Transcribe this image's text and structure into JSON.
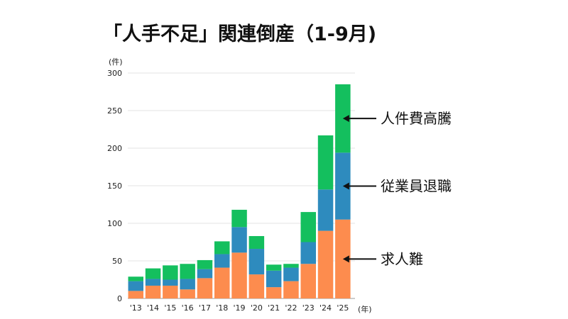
{
  "chart_data": {
    "type": "bar",
    "stacked": true,
    "title": "「人手不足」関連倒産（1-9月)",
    "y_unit": "(件)",
    "x_unit": "(年)",
    "categories": [
      "'13",
      "'14",
      "'15",
      "'16",
      "'17",
      "'18",
      "'19",
      "'20",
      "'21",
      "'22",
      "'23",
      "'24",
      "'25"
    ],
    "ylim": [
      0,
      300
    ],
    "y_ticks": [
      0,
      50,
      100,
      150,
      200,
      250,
      300
    ],
    "grid": true,
    "series": [
      {
        "name": "求人難",
        "color": "#fd8c4e",
        "values": [
          10,
          17,
          17,
          12,
          27,
          41,
          61,
          32,
          15,
          23,
          46,
          90,
          105
        ]
      },
      {
        "name": "従業員退職",
        "color": "#2e8bbe",
        "values": [
          13,
          9,
          8,
          14,
          12,
          18,
          34,
          34,
          22,
          18,
          29,
          55,
          89
        ]
      },
      {
        "name": "人件費高騰",
        "color": "#14bf5e",
        "values": [
          6,
          14,
          19,
          20,
          12,
          17,
          23,
          17,
          8,
          5,
          40,
          72,
          91
        ]
      }
    ],
    "annotations": [
      {
        "label": "人件費高騰",
        "series": "人件費高騰",
        "category": "'25"
      },
      {
        "label": "従業員退職",
        "series": "従業員退職",
        "category": "'25"
      },
      {
        "label": "求人難",
        "series": "求人難",
        "category": "'25"
      }
    ]
  }
}
